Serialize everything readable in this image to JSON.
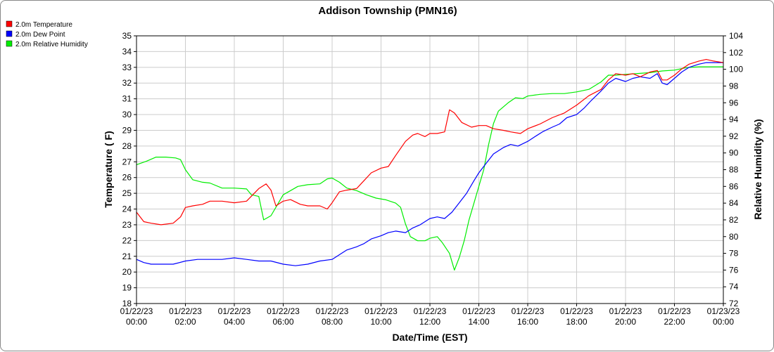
{
  "chart_data": {
    "type": "line",
    "title": "Addison Township (PMN16)",
    "xlabel": "Date/Time (EST)",
    "ylabel": "Temperature ( F)",
    "y2label": "Relative Humidity (%)",
    "xlim": [
      0,
      24
    ],
    "ylim": [
      18,
      35
    ],
    "y2lim": [
      72,
      104
    ],
    "x_ticks": [
      {
        "hour": 0,
        "date": "01/22/23",
        "time": "00:00"
      },
      {
        "hour": 2,
        "date": "01/22/23",
        "time": "02:00"
      },
      {
        "hour": 4,
        "date": "01/22/23",
        "time": "04:00"
      },
      {
        "hour": 6,
        "date": "01/22/23",
        "time": "06:00"
      },
      {
        "hour": 8,
        "date": "01/22/23",
        "time": "08:00"
      },
      {
        "hour": 10,
        "date": "01/22/23",
        "time": "10:00"
      },
      {
        "hour": 12,
        "date": "01/22/23",
        "time": "12:00"
      },
      {
        "hour": 14,
        "date": "01/22/23",
        "time": "14:00"
      },
      {
        "hour": 16,
        "date": "01/22/23",
        "time": "16:00"
      },
      {
        "hour": 18,
        "date": "01/22/23",
        "time": "18:00"
      },
      {
        "hour": 20,
        "date": "01/22/23",
        "time": "20:00"
      },
      {
        "hour": 22,
        "date": "01/22/23",
        "time": "22:00"
      },
      {
        "hour": 24,
        "date": "01/23/23",
        "time": "00:00"
      }
    ],
    "y_ticks": [
      "18",
      "19",
      "20",
      "21",
      "22",
      "23",
      "24",
      "25",
      "26",
      "27",
      "28",
      "29",
      "30",
      "31",
      "32",
      "33",
      "34",
      "35"
    ],
    "y2_ticks": [
      "72",
      "74",
      "76",
      "78",
      "80",
      "82",
      "84",
      "86",
      "88",
      "90",
      "92",
      "94",
      "96",
      "98",
      "100",
      "102",
      "104"
    ],
    "grid": true,
    "legend_position": "top-left",
    "series": [
      {
        "name": "2.0m Temperature",
        "color": "#ff0000",
        "axis": "left",
        "x": [
          0,
          0.3,
          0.6,
          1.0,
          1.5,
          1.8,
          2.0,
          2.3,
          2.7,
          3.0,
          3.5,
          4.0,
          4.5,
          5.0,
          5.3,
          5.5,
          5.7,
          6.0,
          6.3,
          6.7,
          7.0,
          7.5,
          7.8,
          8.0,
          8.3,
          8.6,
          9.0,
          9.3,
          9.6,
          10.0,
          10.3,
          10.6,
          11.0,
          11.3,
          11.5,
          11.8,
          12.0,
          12.3,
          12.6,
          12.8,
          13.0,
          13.3,
          13.7,
          14.0,
          14.3,
          14.6,
          15.0,
          15.3,
          15.7,
          16.0,
          16.5,
          17.0,
          17.5,
          18.0,
          18.5,
          19.0,
          19.3,
          19.6,
          20.0,
          20.3,
          20.6,
          21.0,
          21.3,
          21.5,
          21.7,
          22.0,
          22.3,
          22.6,
          23.0,
          23.3,
          23.6,
          24.0
        ],
        "y": [
          23.8,
          23.2,
          23.1,
          23.0,
          23.1,
          23.5,
          24.1,
          24.2,
          24.3,
          24.5,
          24.5,
          24.4,
          24.5,
          25.3,
          25.6,
          25.2,
          24.2,
          24.5,
          24.6,
          24.3,
          24.2,
          24.2,
          24.0,
          24.4,
          25.1,
          25.2,
          25.3,
          25.8,
          26.3,
          26.6,
          26.7,
          27.4,
          28.3,
          28.7,
          28.8,
          28.6,
          28.8,
          28.8,
          28.9,
          30.3,
          30.1,
          29.5,
          29.2,
          29.3,
          29.3,
          29.1,
          29.0,
          28.9,
          28.8,
          29.1,
          29.4,
          29.8,
          30.1,
          30.6,
          31.2,
          31.6,
          32.2,
          32.6,
          32.5,
          32.6,
          32.4,
          32.7,
          32.8,
          32.2,
          32.2,
          32.5,
          32.9,
          33.2,
          33.4,
          33.5,
          33.4,
          33.3
        ]
      },
      {
        "name": "2.0m Dew Point",
        "color": "#0000ff",
        "axis": "left",
        "x": [
          0,
          0.3,
          0.6,
          1.0,
          1.5,
          2.0,
          2.5,
          3.0,
          3.5,
          4.0,
          4.5,
          5.0,
          5.5,
          6.0,
          6.5,
          7.0,
          7.5,
          8.0,
          8.3,
          8.6,
          9.0,
          9.3,
          9.6,
          10.0,
          10.3,
          10.6,
          11.0,
          11.3,
          11.6,
          12.0,
          12.3,
          12.6,
          12.9,
          13.2,
          13.5,
          13.8,
          14.0,
          14.3,
          14.6,
          15.0,
          15.3,
          15.6,
          16.0,
          16.3,
          16.6,
          17.0,
          17.3,
          17.6,
          18.0,
          18.3,
          18.6,
          19.0,
          19.3,
          19.6,
          20.0,
          20.3,
          20.6,
          21.0,
          21.3,
          21.5,
          21.7,
          22.0,
          22.3,
          22.6,
          23.0,
          23.3,
          23.6,
          24.0
        ],
        "y": [
          20.8,
          20.6,
          20.5,
          20.5,
          20.5,
          20.7,
          20.8,
          20.8,
          20.8,
          20.9,
          20.8,
          20.7,
          20.7,
          20.5,
          20.4,
          20.5,
          20.7,
          20.8,
          21.1,
          21.4,
          21.6,
          21.8,
          22.1,
          22.3,
          22.5,
          22.6,
          22.5,
          22.8,
          23.0,
          23.4,
          23.5,
          23.4,
          23.8,
          24.4,
          25.0,
          25.8,
          26.3,
          26.9,
          27.5,
          27.9,
          28.1,
          28.0,
          28.3,
          28.6,
          28.9,
          29.2,
          29.4,
          29.8,
          30.0,
          30.4,
          30.9,
          31.5,
          32.0,
          32.3,
          32.1,
          32.3,
          32.4,
          32.3,
          32.6,
          32.0,
          31.9,
          32.3,
          32.7,
          33.0,
          33.2,
          33.3,
          33.3,
          33.3
        ]
      },
      {
        "name": "2.0m Relative Humidity",
        "color": "#00ee00",
        "axis": "right",
        "x": [
          0,
          0.4,
          0.8,
          1.2,
          1.6,
          1.8,
          2.0,
          2.3,
          2.7,
          3.0,
          3.5,
          4.0,
          4.5,
          4.7,
          5.0,
          5.2,
          5.5,
          5.8,
          6.0,
          6.3,
          6.6,
          7.0,
          7.5,
          7.8,
          8.0,
          8.3,
          8.6,
          9.0,
          9.4,
          9.8,
          10.2,
          10.6,
          10.8,
          11.0,
          11.2,
          11.5,
          11.8,
          12.0,
          12.3,
          12.5,
          12.8,
          13.0,
          13.2,
          13.4,
          13.6,
          13.8,
          14.0,
          14.2,
          14.4,
          14.6,
          14.8,
          15.0,
          15.2,
          15.5,
          15.8,
          16.0,
          16.5,
          17.0,
          17.5,
          18.0,
          18.5,
          19.0,
          19.3,
          19.6,
          20.0,
          20.5,
          21.0,
          21.5,
          22.0,
          22.5,
          23.0,
          23.5,
          24.0
        ],
        "y": [
          88.6,
          89.0,
          89.5,
          89.5,
          89.4,
          89.2,
          88.0,
          86.8,
          86.5,
          86.4,
          85.8,
          85.8,
          85.7,
          85.0,
          84.8,
          82.0,
          82.5,
          84.0,
          85.0,
          85.5,
          86.0,
          86.2,
          86.3,
          86.9,
          87.0,
          86.5,
          85.8,
          85.5,
          85.0,
          84.6,
          84.4,
          84.0,
          83.5,
          81.5,
          80.0,
          79.5,
          79.5,
          79.8,
          80.0,
          79.3,
          78.0,
          76.0,
          77.5,
          79.5,
          82.0,
          84.0,
          86.0,
          88.0,
          91.0,
          93.5,
          95.0,
          95.5,
          96.0,
          96.6,
          96.5,
          96.8,
          97.0,
          97.1,
          97.1,
          97.3,
          97.6,
          98.5,
          99.3,
          99.3,
          99.4,
          99.5,
          99.6,
          99.8,
          99.9,
          100.2,
          100.3,
          100.3,
          100.3
        ]
      }
    ]
  }
}
